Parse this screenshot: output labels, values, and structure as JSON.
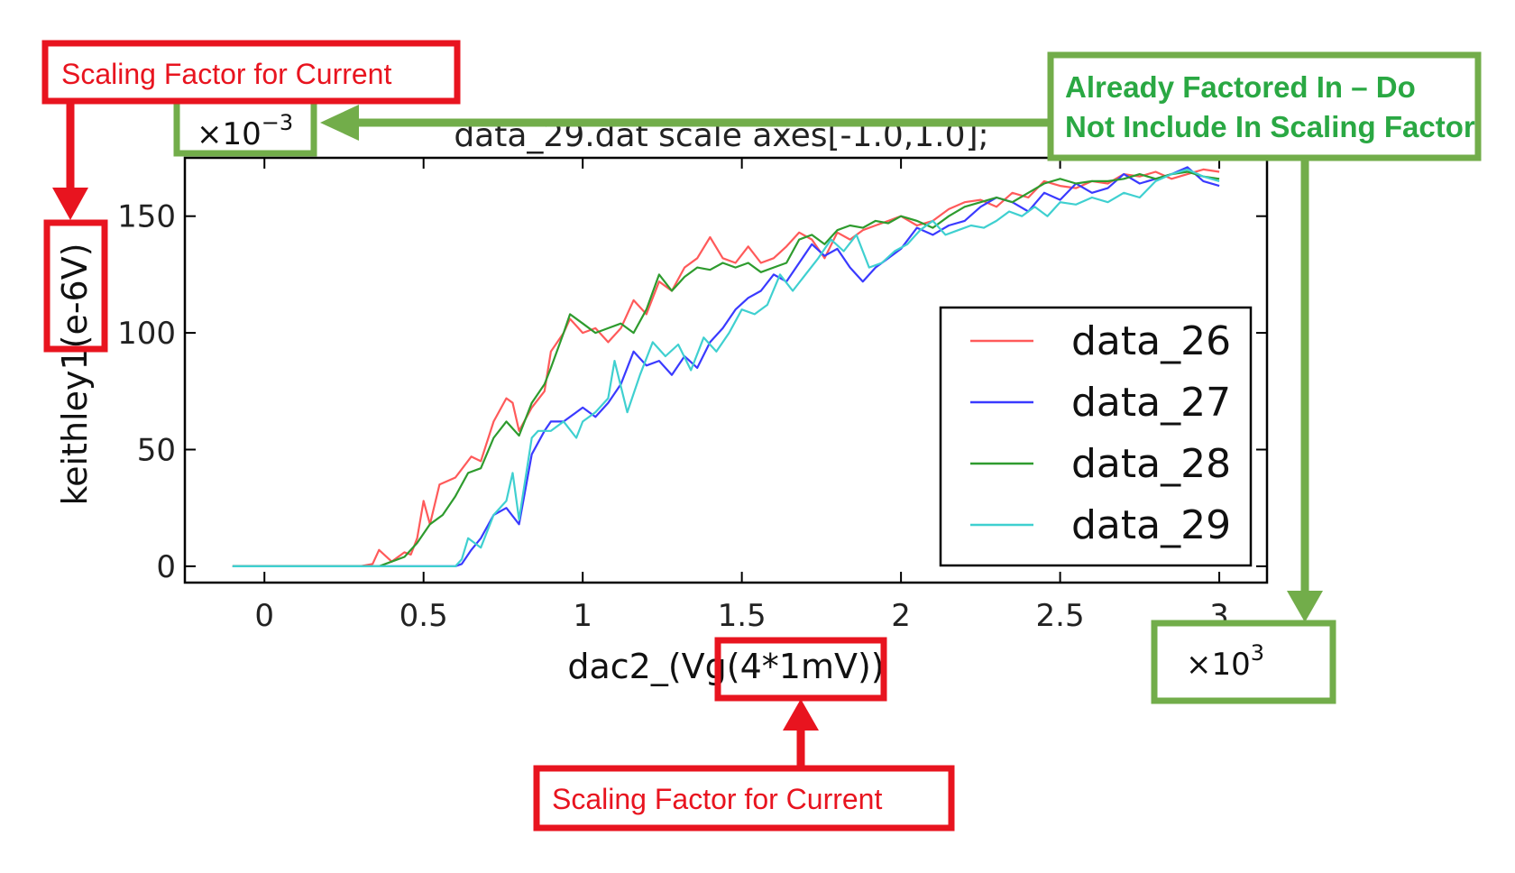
{
  "chart_data": {
    "type": "line",
    "title": "data_29.dat scale axes[-1.0,1.0];",
    "xlabel": "dac2_(Vg(4*1mV))",
    "ylabel": "keithley1(e-6V)",
    "x_multiplier": "×10^3",
    "y_multiplier": "×10^−3",
    "xlim": [
      -0.25,
      3.15
    ],
    "ylim": [
      -7,
      175
    ],
    "x_ticks": [
      0,
      0.5,
      1,
      1.5,
      2,
      2.5,
      3
    ],
    "x_tick_labels": [
      "0",
      "0.5",
      "1",
      "1.5",
      "2",
      "2.5",
      "3"
    ],
    "y_ticks": [
      0,
      50,
      100,
      150
    ],
    "y_tick_labels": [
      "0",
      "50",
      "100",
      "150"
    ],
    "grid": false,
    "legend_position": "lower-right",
    "series": [
      {
        "name": "data_26",
        "color": "#ff5a5a",
        "x": [
          -0.1,
          0.0,
          0.1,
          0.2,
          0.3,
          0.34,
          0.36,
          0.4,
          0.44,
          0.46,
          0.48,
          0.5,
          0.52,
          0.55,
          0.6,
          0.65,
          0.68,
          0.72,
          0.76,
          0.78,
          0.8,
          0.84,
          0.88,
          0.9,
          0.94,
          0.96,
          1.0,
          1.04,
          1.08,
          1.12,
          1.16,
          1.2,
          1.24,
          1.28,
          1.32,
          1.36,
          1.4,
          1.44,
          1.48,
          1.52,
          1.56,
          1.6,
          1.64,
          1.68,
          1.72,
          1.76,
          1.8,
          1.84,
          1.88,
          1.92,
          1.96,
          2.0,
          2.05,
          2.1,
          2.15,
          2.2,
          2.25,
          2.3,
          2.35,
          2.4,
          2.45,
          2.5,
          2.55,
          2.6,
          2.65,
          2.7,
          2.75,
          2.8,
          2.85,
          2.9,
          2.95,
          3.0
        ],
        "y": [
          0,
          0,
          0,
          0,
          0,
          1,
          7,
          2,
          6,
          5,
          12,
          28,
          18,
          35,
          38,
          47,
          45,
          62,
          72,
          70,
          58,
          68,
          75,
          92,
          100,
          106,
          100,
          102,
          96,
          102,
          114,
          108,
          122,
          118,
          128,
          132,
          141,
          132,
          130,
          137,
          130,
          132,
          137,
          143,
          140,
          132,
          143,
          140,
          144,
          146,
          148,
          150,
          146,
          148,
          153,
          156,
          157,
          154,
          160,
          158,
          165,
          163,
          162,
          165,
          164,
          168,
          167,
          169,
          166,
          168,
          170,
          169
        ]
      },
      {
        "name": "data_27",
        "color": "#3a3aff",
        "x": [
          -0.1,
          0.0,
          0.1,
          0.2,
          0.3,
          0.4,
          0.5,
          0.55,
          0.6,
          0.62,
          0.65,
          0.68,
          0.72,
          0.76,
          0.8,
          0.84,
          0.88,
          0.9,
          0.94,
          0.98,
          1.0,
          1.04,
          1.08,
          1.12,
          1.16,
          1.2,
          1.24,
          1.28,
          1.32,
          1.36,
          1.4,
          1.44,
          1.48,
          1.52,
          1.56,
          1.6,
          1.64,
          1.68,
          1.72,
          1.76,
          1.8,
          1.84,
          1.88,
          1.92,
          1.96,
          2.0,
          2.05,
          2.1,
          2.15,
          2.2,
          2.25,
          2.3,
          2.35,
          2.4,
          2.45,
          2.5,
          2.55,
          2.6,
          2.65,
          2.7,
          2.75,
          2.8,
          2.85,
          2.9,
          2.95,
          3.0
        ],
        "y": [
          0,
          0,
          0,
          0,
          0,
          0,
          0,
          0,
          0,
          1,
          7,
          12,
          22,
          25,
          18,
          48,
          58,
          62,
          62,
          66,
          68,
          64,
          70,
          78,
          92,
          86,
          88,
          82,
          90,
          85,
          96,
          102,
          110,
          115,
          118,
          125,
          122,
          130,
          138,
          133,
          136,
          128,
          122,
          128,
          132,
          136,
          145,
          142,
          146,
          148,
          154,
          158,
          156,
          152,
          160,
          157,
          164,
          160,
          162,
          168,
          164,
          166,
          168,
          171,
          165,
          163
        ]
      },
      {
        "name": "data_28",
        "color": "#2e9b2e",
        "x": [
          -0.1,
          0.0,
          0.1,
          0.2,
          0.3,
          0.36,
          0.4,
          0.44,
          0.48,
          0.52,
          0.56,
          0.6,
          0.64,
          0.68,
          0.72,
          0.76,
          0.8,
          0.84,
          0.88,
          0.9,
          0.94,
          0.96,
          1.0,
          1.04,
          1.08,
          1.12,
          1.16,
          1.2,
          1.24,
          1.28,
          1.32,
          1.36,
          1.4,
          1.44,
          1.48,
          1.52,
          1.56,
          1.6,
          1.64,
          1.68,
          1.72,
          1.76,
          1.8,
          1.84,
          1.88,
          1.92,
          1.96,
          2.0,
          2.05,
          2.1,
          2.15,
          2.2,
          2.25,
          2.3,
          2.35,
          2.4,
          2.45,
          2.5,
          2.55,
          2.6,
          2.65,
          2.7,
          2.75,
          2.8,
          2.85,
          2.9,
          2.95,
          3.0
        ],
        "y": [
          0,
          0,
          0,
          0,
          0,
          0,
          2,
          4,
          10,
          18,
          22,
          30,
          40,
          42,
          55,
          62,
          56,
          70,
          78,
          85,
          100,
          108,
          104,
          100,
          102,
          104,
          100,
          110,
          125,
          118,
          124,
          128,
          127,
          130,
          128,
          130,
          126,
          128,
          130,
          140,
          142,
          138,
          144,
          146,
          145,
          148,
          147,
          150,
          148,
          145,
          150,
          154,
          156,
          158,
          156,
          160,
          164,
          166,
          164,
          165,
          165,
          166,
          168,
          166,
          168,
          169,
          167,
          166
        ]
      },
      {
        "name": "data_29",
        "color": "#3fd0d0",
        "x": [
          -0.1,
          0.0,
          0.1,
          0.2,
          0.3,
          0.4,
          0.5,
          0.6,
          0.62,
          0.64,
          0.68,
          0.72,
          0.76,
          0.78,
          0.8,
          0.84,
          0.86,
          0.9,
          0.94,
          0.98,
          1.0,
          1.04,
          1.08,
          1.1,
          1.14,
          1.18,
          1.22,
          1.26,
          1.3,
          1.34,
          1.38,
          1.42,
          1.46,
          1.5,
          1.54,
          1.58,
          1.62,
          1.66,
          1.7,
          1.74,
          1.78,
          1.82,
          1.86,
          1.9,
          1.94,
          1.98,
          2.02,
          2.06,
          2.1,
          2.14,
          2.18,
          2.22,
          2.26,
          2.3,
          2.34,
          2.38,
          2.42,
          2.46,
          2.5,
          2.55,
          2.6,
          2.65,
          2.7,
          2.75,
          2.8,
          2.85,
          2.9,
          2.95,
          3.0
        ],
        "y": [
          0,
          0,
          0,
          0,
          0,
          0,
          0,
          0,
          3,
          12,
          8,
          22,
          28,
          40,
          20,
          55,
          58,
          58,
          62,
          55,
          62,
          66,
          72,
          88,
          66,
          82,
          96,
          90,
          95,
          84,
          98,
          92,
          100,
          110,
          108,
          112,
          125,
          118,
          125,
          132,
          140,
          135,
          142,
          128,
          130,
          135,
          138,
          144,
          148,
          142,
          144,
          146,
          145,
          148,
          152,
          150,
          154,
          150,
          156,
          155,
          158,
          156,
          160,
          158,
          165,
          168,
          170,
          167,
          165
        ]
      }
    ]
  },
  "annotations": {
    "top_left_label": "Scaling Factor for Current",
    "bottom_label": "Scaling Factor for Current",
    "green_label_line1": "Already Factored In – Do",
    "green_label_line2": "Not Include In Scaling Factor",
    "y_multiplier_box_text": "×10",
    "y_multiplier_exponent": "−3",
    "x_multiplier_box_text": "×10",
    "x_multiplier_exponent": "3",
    "ylabel_highlight": "(e-6V)",
    "xlabel_highlight": "(4*1mV)",
    "red_color": "#e8141f",
    "green_color": "#72ad4a"
  }
}
